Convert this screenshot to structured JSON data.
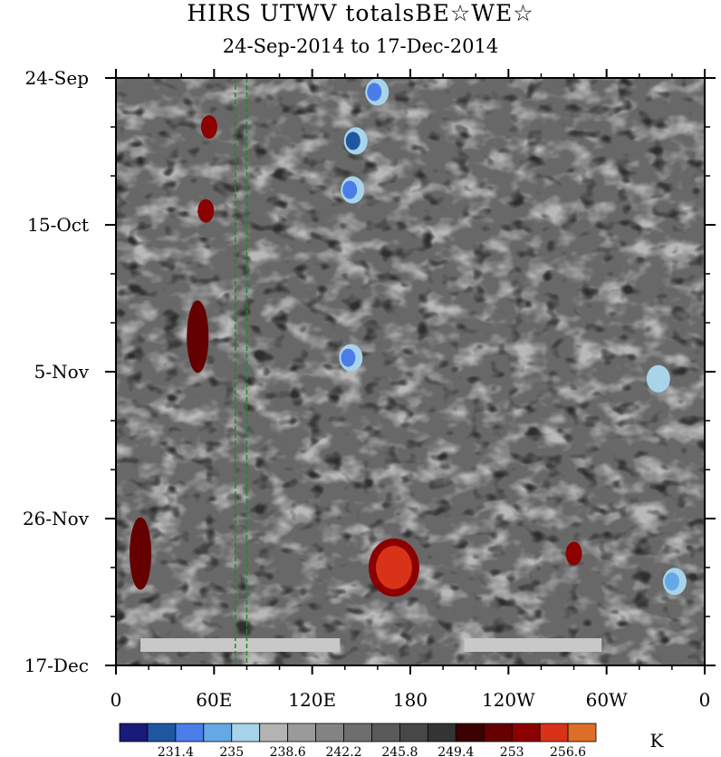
{
  "chart_data": {
    "type": "heatmap",
    "title": "HIRS UTWV totalsBE☆WE☆",
    "subtitle": "24-Sep-2014 to 17-Dec-2014",
    "x_tick_labels": [
      "0",
      "60E",
      "120E",
      "180",
      "120W",
      "60W",
      "0"
    ],
    "x_ticks_deg": [
      0,
      60,
      120,
      180,
      240,
      300,
      360
    ],
    "y_tick_labels": [
      "24-Sep",
      "15-Oct",
      "5-Nov",
      "26-Nov",
      "17-Dec"
    ],
    "y_range": [
      "2014-09-24",
      "2014-12-17"
    ],
    "x_range_deg": [
      0,
      360
    ],
    "colorbar": {
      "unit": "K",
      "tick_labels": [
        "231.4",
        "235",
        "238.6",
        "242.2",
        "245.8",
        "249.4",
        "253",
        "256.6"
      ],
      "colors": [
        "#1a1a78",
        "#1e56a0",
        "#4a7de8",
        "#64a8e6",
        "#a8d4ea",
        "#b4b4b4",
        "#9a9a9a",
        "#838383",
        "#6e6e6e",
        "#5a5a5a",
        "#474747",
        "#343434",
        "#3c0000",
        "#640000",
        "#8c0000",
        "#d83218",
        "#dc6e28"
      ]
    },
    "reference_lines_deg": [
      73,
      80
    ],
    "missing_bars_deg": [
      [
        15,
        137
      ],
      [
        213,
        297
      ]
    ],
    "hot_spots": [
      {
        "lon": 50,
        "date": "2014-10-31",
        "color": "#640000"
      },
      {
        "lon": 55,
        "date": "2014-10-13",
        "color": "#8c0000"
      },
      {
        "lon": 57,
        "date": "2014-10-01",
        "color": "#8c0000"
      },
      {
        "lon": 170,
        "date": "2014-12-03",
        "color": "#d83218"
      },
      {
        "lon": 280,
        "date": "2014-12-01",
        "color": "#8c0000"
      },
      {
        "lon": 15,
        "date": "2014-12-01",
        "color": "#640000"
      }
    ],
    "cold_spots": [
      {
        "lon": 145,
        "date": "2014-10-03",
        "color": "#1e56a0"
      },
      {
        "lon": 143,
        "date": "2014-10-10",
        "color": "#4a7de8"
      },
      {
        "lon": 158,
        "date": "2014-09-26",
        "color": "#4a7de8"
      },
      {
        "lon": 142,
        "date": "2014-11-03",
        "color": "#4a7de8"
      },
      {
        "lon": 340,
        "date": "2014-12-05",
        "color": "#64a8e6"
      },
      {
        "lon": 330,
        "date": "2014-11-06",
        "color": "#a8d4ea"
      }
    ]
  }
}
